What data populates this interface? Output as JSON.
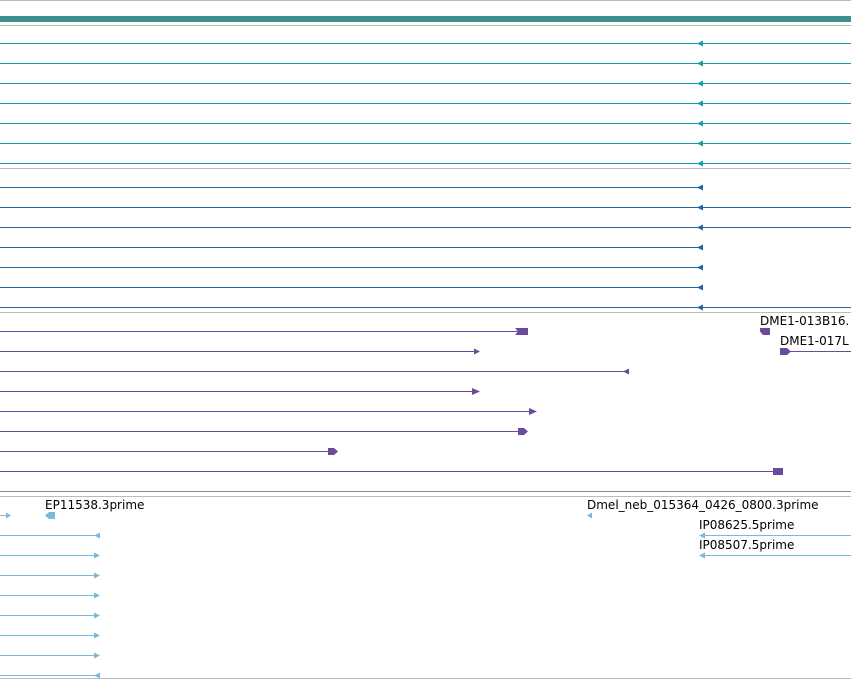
{
  "colors": {
    "background": "#ffffff",
    "separator": "#bbbbbb",
    "track_bar": "#3f8f8f",
    "teal": "#1a9ba8",
    "blue": "#2366a8",
    "purple": "#6a4a9a",
    "light_blue": "#7ab8dc",
    "label": "#000000"
  },
  "tracks": [
    {
      "name": "teal-track",
      "color_key": "teal",
      "features": [
        {
          "label": "",
          "glyph": "arrow-left",
          "extends_right": true
        },
        {
          "label": "",
          "glyph": "arrow-left",
          "extends_right": true
        },
        {
          "label": "",
          "glyph": "arrow-left",
          "extends_right": true
        },
        {
          "label": "",
          "glyph": "arrow-left",
          "extends_right": true
        },
        {
          "label": "",
          "glyph": "arrow-left",
          "extends_right": true
        },
        {
          "label": "",
          "glyph": "arrow-left",
          "extends_right": true
        },
        {
          "label": "",
          "glyph": "arrow-left",
          "extends_right": true
        }
      ]
    },
    {
      "name": "blue-track",
      "color_key": "blue",
      "features": [
        {
          "label": "",
          "glyph": "arrow-left",
          "extends_right": false
        },
        {
          "label": "",
          "glyph": "arrow-left",
          "extends_right": true
        },
        {
          "label": "",
          "glyph": "arrow-left",
          "extends_right": true
        },
        {
          "label": "",
          "glyph": "arrow-left",
          "extends_right": false
        },
        {
          "label": "",
          "glyph": "arrow-left",
          "extends_right": false
        },
        {
          "label": "",
          "glyph": "arrow-left",
          "extends_right": false
        },
        {
          "label": "",
          "glyph": "arrow-left",
          "extends_right": true
        }
      ]
    },
    {
      "name": "purple-track",
      "labels": [
        "DME1-013B16.",
        "DME1-017L"
      ]
    },
    {
      "name": "light-blue-track",
      "labels": [
        "EP11538.3prime",
        "Dmel_neb_015364_0426_0800.3prime",
        "IP08625.5prime",
        "IP08507.5prime"
      ]
    }
  ]
}
